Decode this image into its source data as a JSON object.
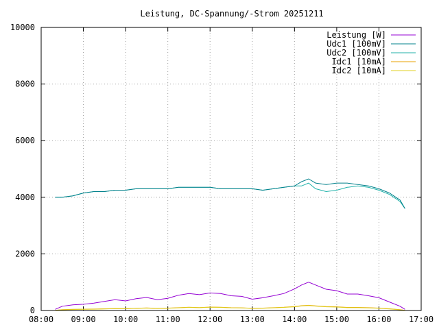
{
  "chart_data": {
    "type": "line",
    "title": "Leistung, DC-Spannung/-Strom 20251211",
    "xlabel": "",
    "ylabel": "",
    "xlim": [
      "08:00",
      "17:00"
    ],
    "ylim": [
      0,
      10000
    ],
    "x_ticks": [
      "08:00",
      "09:00",
      "10:00",
      "11:00",
      "12:00",
      "13:00",
      "14:00",
      "15:00",
      "16:00",
      "17:00"
    ],
    "y_ticks": [
      "0",
      "2000",
      "4000",
      "6000",
      "8000",
      "10000"
    ],
    "grid": true,
    "legend_position": "top-right",
    "x": [
      "08:20",
      "08:30",
      "08:45",
      "09:00",
      "09:15",
      "09:30",
      "09:45",
      "10:00",
      "10:15",
      "10:30",
      "10:45",
      "11:00",
      "11:15",
      "11:30",
      "11:45",
      "12:00",
      "12:15",
      "12:30",
      "12:45",
      "13:00",
      "13:15",
      "13:30",
      "13:45",
      "14:00",
      "14:10",
      "14:20",
      "14:30",
      "14:45",
      "15:00",
      "15:15",
      "15:30",
      "15:45",
      "16:00",
      "16:15",
      "16:30",
      "16:37"
    ],
    "series": [
      {
        "name": "Leistung [W]",
        "color": "#9400d3",
        "values": [
          40,
          150,
          200,
          220,
          260,
          320,
          380,
          340,
          420,
          460,
          380,
          430,
          540,
          600,
          560,
          620,
          600,
          520,
          500,
          400,
          450,
          520,
          600,
          760,
          900,
          1000,
          900,
          750,
          700,
          580,
          580,
          520,
          450,
          300,
          150,
          40
        ]
      },
      {
        "name": "Udc1 [100mV]",
        "color": "#00808b",
        "values": [
          4000,
          4000,
          4050,
          4150,
          4200,
          4200,
          4250,
          4250,
          4300,
          4300,
          4300,
          4300,
          4350,
          4350,
          4350,
          4350,
          4300,
          4300,
          4300,
          4300,
          4250,
          4300,
          4350,
          4400,
          4550,
          4650,
          4500,
          4450,
          4500,
          4500,
          4450,
          4400,
          4300,
          4150,
          3900,
          3600
        ]
      },
      {
        "name": "Udc2 [100mV]",
        "color": "#20b2aa",
        "values": [
          4000,
          4000,
          4050,
          4150,
          4200,
          4200,
          4250,
          4250,
          4300,
          4300,
          4300,
          4300,
          4350,
          4350,
          4350,
          4350,
          4300,
          4300,
          4300,
          4300,
          4250,
          4300,
          4350,
          4400,
          4400,
          4500,
          4300,
          4200,
          4250,
          4350,
          4400,
          4350,
          4250,
          4100,
          3850,
          3600
        ]
      },
      {
        "name": "Idc1 [10mA]",
        "color": "#e8a000",
        "values": [
          5,
          30,
          40,
          45,
          50,
          60,
          70,
          65,
          80,
          90,
          75,
          85,
          100,
          115,
          105,
          120,
          115,
          100,
          95,
          80,
          85,
          100,
          115,
          140,
          170,
          185,
          165,
          140,
          130,
          110,
          110,
          100,
          85,
          60,
          30,
          5
        ]
      },
      {
        "name": "Idc2 [10mA]",
        "color": "#e0d020",
        "values": [
          5,
          25,
          35,
          40,
          45,
          55,
          65,
          60,
          75,
          85,
          70,
          80,
          95,
          110,
          100,
          115,
          110,
          95,
          90,
          75,
          80,
          95,
          110,
          130,
          160,
          175,
          155,
          130,
          120,
          100,
          100,
          90,
          80,
          55,
          25,
          5
        ]
      }
    ]
  }
}
